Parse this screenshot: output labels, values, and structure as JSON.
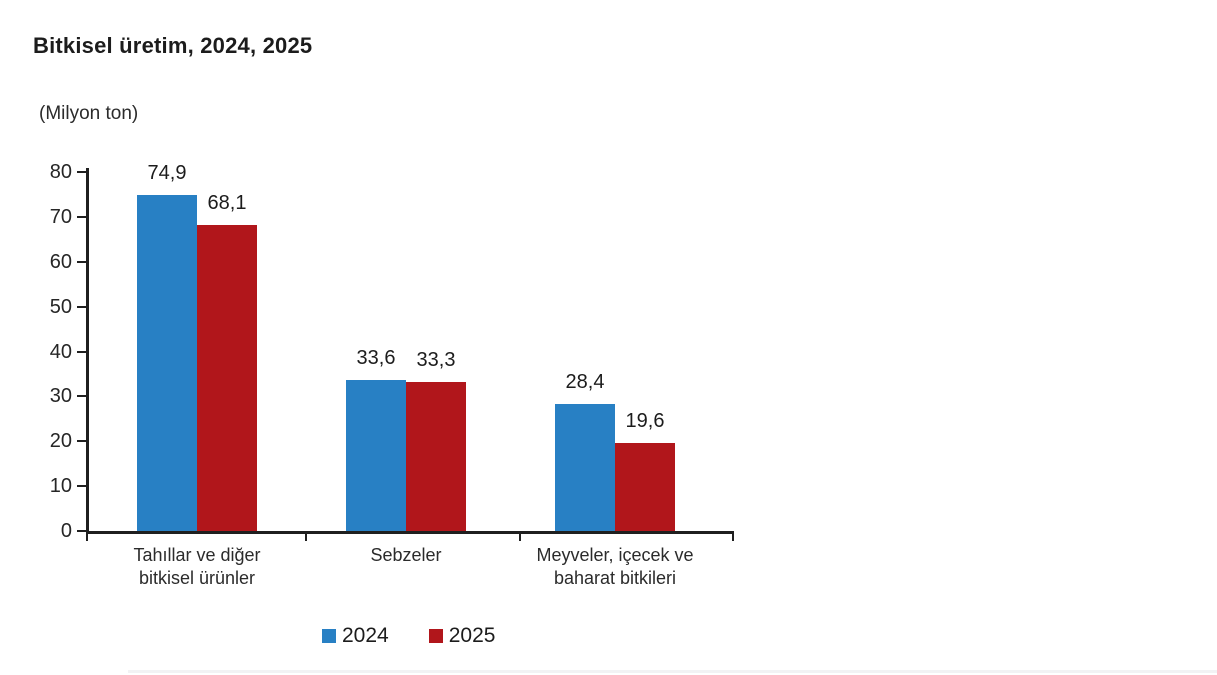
{
  "title": "Bitkisel üretim, 2024, 2025",
  "unit_label": "(Milyon ton)",
  "colors": {
    "bar_2024": "#2880c4",
    "bar_2025": "#b1161b",
    "axis": "#1f1f1f",
    "text": "#262626"
  },
  "legend": [
    {
      "label": "2024",
      "color": "#2880c4"
    },
    {
      "label": "2025",
      "color": "#b1161b"
    }
  ],
  "chart_data": {
    "type": "bar",
    "title": "Bitkisel üretim, 2024, 2025",
    "unit": "Milyon ton",
    "categories": [
      "Tahıllar ve diğer bitkisel ürünler",
      "Sebzeler",
      "Meyveler, içecek ve baharat bitkileri"
    ],
    "category_lines": [
      [
        "Tahıllar ve diğer",
        "bitkisel ürünler"
      ],
      [
        "Sebzeler"
      ],
      [
        "Meyveler, içecek ve",
        "baharat  bitkileri"
      ]
    ],
    "series": [
      {
        "name": "2024",
        "color": "#2880c4",
        "values": [
          74.9,
          33.6,
          28.4
        ],
        "labels": [
          "74,9",
          "33,6",
          "28,4"
        ]
      },
      {
        "name": "2025",
        "color": "#b1161b",
        "values": [
          68.1,
          33.3,
          19.6
        ],
        "labels": [
          "68,1",
          "33,3",
          "19,6"
        ]
      }
    ],
    "ylim": [
      0,
      80
    ],
    "yticks": [
      0,
      10,
      20,
      30,
      40,
      50,
      60,
      70,
      80
    ],
    "grid": false,
    "legend_position": "bottom"
  }
}
